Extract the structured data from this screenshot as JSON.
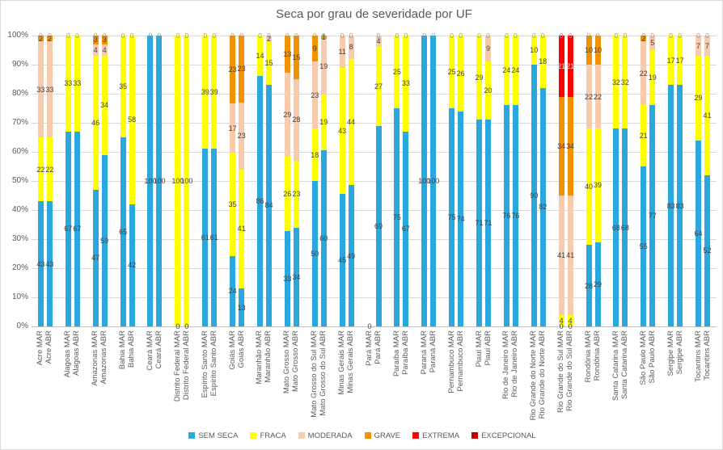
{
  "window": {
    "background": "#FFFFFF",
    "border_color": "#D9D9D9"
  },
  "chart_data": {
    "type": "bar",
    "stacking": "percent",
    "title": "Seca por grau de severidade por UF",
    "ylabel": "",
    "ylim": [
      0,
      100
    ],
    "grid": true,
    "legend_position": "bottom",
    "y_ticks": [
      "0%",
      "10%",
      "20%",
      "30%",
      "40%",
      "50%",
      "60%",
      "70%",
      "80%",
      "90%",
      "100%"
    ],
    "colors": {
      "grid": "#D9D9D9",
      "axis_line": "#BFBFBF",
      "axis_text": "#595959",
      "title_text": "#595959",
      "data_label": "#404040",
      "data_label_on_red": "#EDEDED",
      "data_label_zero": "#999999"
    },
    "categories": [
      "Acre MAR",
      "Acre ABR",
      "Alagoas MAR",
      "Alagoas ABR",
      "Amazonas MAR",
      "Amazonas ABR",
      "Bahia MAR",
      "Bahia ABR",
      "Ceará MAR",
      "Ceará ABR",
      "Distrito Federal MAR",
      "Distrito Federal ABR",
      "Espírito Santo MAR",
      "Espírito Santo ABR",
      "Goiás MAR",
      "Goiás ABR",
      "Maranhão MAR",
      "Maranhão ABR",
      "Mato Grosso MAR",
      "Mato Grosso ABR",
      "Mato Grosso do Sul MAR",
      "Mato Grosso do Sul ABR",
      "Minas Gerais MAR",
      "Minas Gerais ABR",
      "Pará MAR",
      "Pará ABR",
      "Paraíba MAR",
      "Paraíba ABR",
      "Paraná MAR",
      "Paraná ABR",
      "Pernambuco MAR",
      "Pernambuco ABR",
      "Piauí MAR",
      "Piauí ABR",
      "Rio de Janeiro MAR",
      "Rio de Janeiro ABR",
      "Rio Grande do Norte MAR",
      "Rio Grande do Norte ABR",
      "Rio Grande do Sul MAR",
      "Rio Grande do Sul ABR",
      "Rondônia MAR",
      "Rondônia ABR",
      "Santa Catarina MAR",
      "Santa Catarina ABR",
      "São Paulo MAR",
      "São Paulo ABR",
      "Sergipe MAR",
      "Sergipe ABR",
      "Tocantins MAR",
      "Tocantins ABR"
    ],
    "series": [
      {
        "name": "SEM SECA",
        "color": "#2BA7DF",
        "values": [
          43,
          43,
          67,
          67,
          47,
          59,
          65,
          42,
          100,
          100,
          0,
          0,
          61,
          61,
          24,
          13,
          86,
          84,
          33,
          34,
          50,
          60,
          45,
          49,
          0,
          69,
          75,
          67,
          100,
          100,
          75,
          74,
          71,
          71,
          76,
          76,
          90,
          82,
          0,
          0,
          28,
          29,
          68,
          68,
          55,
          77,
          83,
          83,
          64,
          52
        ]
      },
      {
        "name": "FRACA",
        "color": "#FFFF00",
        "values": [
          22,
          22,
          33,
          33,
          46,
          34,
          35,
          58,
          0,
          0,
          100,
          100,
          39,
          39,
          35,
          41,
          14,
          15,
          26,
          23,
          18,
          19,
          43,
          44,
          0,
          27,
          25,
          33,
          0,
          0,
          25,
          26,
          29,
          20,
          24,
          24,
          10,
          18,
          4,
          4,
          40,
          39,
          32,
          32,
          21,
          19,
          17,
          17,
          29,
          41
        ]
      },
      {
        "name": "MODERADA",
        "color": "#F8CBAD",
        "values": [
          33,
          33,
          0,
          0,
          4,
          4,
          0,
          0,
          0,
          0,
          0,
          0,
          0,
          0,
          17,
          23,
          0,
          2,
          29,
          28,
          23,
          19,
          11,
          8,
          0,
          4,
          0,
          0,
          0,
          0,
          0,
          0,
          0,
          9,
          0,
          0,
          0,
          0,
          41,
          41,
          22,
          22,
          0,
          0,
          22,
          5,
          0,
          0,
          7,
          7
        ]
      },
      {
        "name": "GRAVE",
        "color": "#F39200",
        "values": [
          2,
          2,
          0,
          0,
          3,
          3,
          0,
          0,
          0,
          0,
          0,
          0,
          0,
          0,
          23,
          23,
          0,
          0,
          13,
          15,
          9,
          1,
          0,
          0,
          0,
          0,
          0,
          0,
          0,
          0,
          0,
          0,
          0,
          0,
          0,
          0,
          0,
          0,
          34,
          34,
          10,
          10,
          0,
          0,
          2,
          0,
          0,
          0,
          0,
          0
        ]
      },
      {
        "name": "EXTREMA",
        "color": "#FF0000",
        "values": [
          0,
          0,
          0,
          0,
          0,
          0,
          0,
          0,
          0,
          0,
          0,
          0,
          0,
          0,
          0,
          0,
          0,
          0,
          0,
          0,
          0,
          0,
          0,
          0,
          0,
          0,
          0,
          0,
          0,
          0,
          0,
          0,
          0,
          0,
          0,
          0,
          0,
          0,
          21,
          21,
          0,
          0,
          0,
          0,
          0,
          0,
          0,
          0,
          0,
          0
        ]
      },
      {
        "name": "EXCEPCIONAL",
        "color": "#C00000",
        "values": [
          0,
          0,
          0,
          0,
          0,
          0,
          0,
          0,
          0,
          0,
          0,
          0,
          0,
          0,
          0,
          0,
          0,
          0,
          0,
          0,
          0,
          0,
          0,
          0,
          0,
          0,
          0,
          0,
          0,
          0,
          0,
          0,
          0,
          0,
          0,
          0,
          0,
          0,
          0,
          0,
          0,
          0,
          0,
          0,
          0,
          0,
          0,
          0,
          0,
          0
        ]
      }
    ]
  }
}
